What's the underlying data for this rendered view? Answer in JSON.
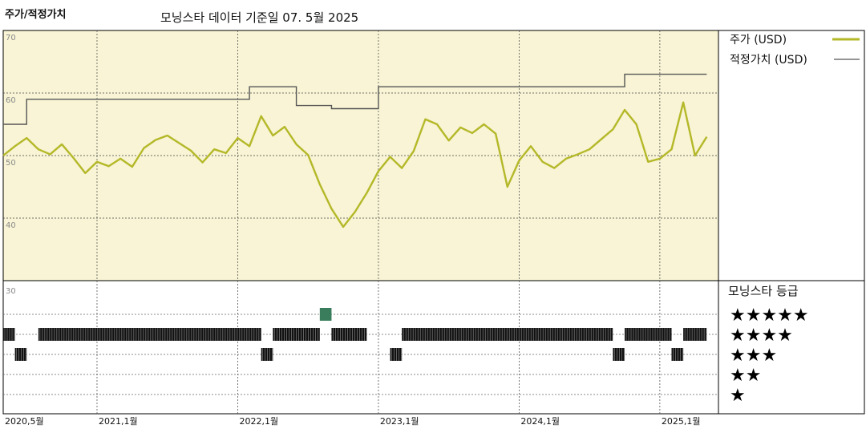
{
  "header": {
    "title": "주가/적정가치",
    "subtitle": "모닝스타 데이터 기준일 07. 5월 2025"
  },
  "chart_data": {
    "type": "line",
    "price_axis": {
      "min": 30,
      "max": 70,
      "ticks": [
        70,
        60,
        50,
        40,
        30
      ]
    },
    "x_ticks": [
      "2020,5월",
      "2021,1월",
      "2022,1월",
      "2023,1월",
      "2024,1월",
      "2025,1월"
    ],
    "x_tick_dates": [
      "2020-05",
      "2021-01",
      "2022-01",
      "2023-01",
      "2024-01",
      "2025-01"
    ],
    "x_range": [
      "2020-05",
      "2025-06"
    ],
    "series": [
      {
        "name": "주가 (USD)",
        "color": "#b4b828",
        "points": [
          [
            "2020-05",
            50.0
          ],
          [
            "2020-06",
            51.5
          ],
          [
            "2020-07",
            52.8
          ],
          [
            "2020-08",
            51.0
          ],
          [
            "2020-09",
            50.2
          ],
          [
            "2020-10",
            51.8
          ],
          [
            "2020-11",
            49.6
          ],
          [
            "2020-12",
            47.2
          ],
          [
            "2021-01",
            49.0
          ],
          [
            "2021-02",
            48.3
          ],
          [
            "2021-03",
            49.5
          ],
          [
            "2021-04",
            48.2
          ],
          [
            "2021-05",
            51.2
          ],
          [
            "2021-06",
            52.5
          ],
          [
            "2021-07",
            53.2
          ],
          [
            "2021-08",
            52.0
          ],
          [
            "2021-09",
            50.8
          ],
          [
            "2021-10",
            48.9
          ],
          [
            "2021-11",
            51.0
          ],
          [
            "2021-12",
            50.4
          ],
          [
            "2022-01",
            52.8
          ],
          [
            "2022-02",
            51.5
          ],
          [
            "2022-03",
            56.3
          ],
          [
            "2022-04",
            53.2
          ],
          [
            "2022-05",
            54.6
          ],
          [
            "2022-06",
            51.8
          ],
          [
            "2022-07",
            50.1
          ],
          [
            "2022-08",
            45.4
          ],
          [
            "2022-09",
            41.5
          ],
          [
            "2022-10",
            38.6
          ],
          [
            "2022-11",
            41.0
          ],
          [
            "2022-12",
            44.0
          ],
          [
            "2023-01",
            47.5
          ],
          [
            "2023-02",
            49.8
          ],
          [
            "2023-03",
            48.0
          ],
          [
            "2023-04",
            50.7
          ],
          [
            "2023-05",
            55.8
          ],
          [
            "2023-06",
            55.0
          ],
          [
            "2023-07",
            52.4
          ],
          [
            "2023-08",
            54.5
          ],
          [
            "2023-09",
            53.6
          ],
          [
            "2023-10",
            55.0
          ],
          [
            "2023-11",
            53.5
          ],
          [
            "2023-12",
            45.0
          ],
          [
            "2024-01",
            49.2
          ],
          [
            "2024-02",
            51.5
          ],
          [
            "2024-03",
            49.0
          ],
          [
            "2024-04",
            48.0
          ],
          [
            "2024-05",
            49.5
          ],
          [
            "2024-06",
            50.2
          ],
          [
            "2024-07",
            51.0
          ],
          [
            "2024-08",
            52.6
          ],
          [
            "2024-09",
            54.2
          ],
          [
            "2024-10",
            57.3
          ],
          [
            "2024-11",
            55.0
          ],
          [
            "2024-12",
            49.0
          ],
          [
            "2025-01",
            49.5
          ],
          [
            "2025-02",
            51.0
          ],
          [
            "2025-03",
            58.5
          ],
          [
            "2025-04",
            50.0
          ],
          [
            "2025-05",
            53.0
          ]
        ]
      },
      {
        "name": "적정가치 (USD)",
        "color": "#555555",
        "steps": [
          [
            "2020-05",
            55.0
          ],
          [
            "2020-07",
            59.0
          ],
          [
            "2022-02",
            61.0
          ],
          [
            "2022-06",
            58.0
          ],
          [
            "2022-09",
            57.5
          ],
          [
            "2023-01",
            61.0
          ],
          [
            "2024-10",
            63.0
          ],
          [
            "2025-05",
            63.0
          ]
        ]
      }
    ],
    "rating_legend_title": "모닝스타 등급",
    "ratings": [
      {
        "stars": 5,
        "label": "★★★★★",
        "segments": []
      },
      {
        "stars": 4,
        "label": "★★★★",
        "segments": []
      },
      {
        "stars": 3,
        "label": "★★★",
        "segments": []
      },
      {
        "stars": 2,
        "label": "★★",
        "segments": []
      },
      {
        "stars": 1,
        "label": "★",
        "segments": []
      }
    ],
    "rating_segments": {
      "4": [
        [
          "2020-05",
          "2020-06"
        ],
        [
          "2020-08",
          "2022-03"
        ],
        [
          "2022-04",
          "2022-08"
        ],
        [
          "2022-09",
          "2022-12"
        ],
        [
          "2023-03",
          "2024-09"
        ],
        [
          "2024-10",
          "2025-02"
        ],
        [
          "2025-03",
          "2025-05"
        ]
      ],
      "3": [
        [
          "2020-06",
          "2020-07"
        ],
        [
          "2022-03",
          "2022-04"
        ],
        [
          "2023-02",
          "2023-03"
        ],
        [
          "2024-09",
          "2024-10"
        ],
        [
          "2025-02",
          "2025-03"
        ]
      ],
      "5": [
        [
          "2022-08",
          "2022-09"
        ]
      ]
    },
    "colors": {
      "plot_bg": "#f8f4d5",
      "price": "#b4b828",
      "fair_value": "#555555",
      "five_star": "#3a7d5c"
    }
  }
}
